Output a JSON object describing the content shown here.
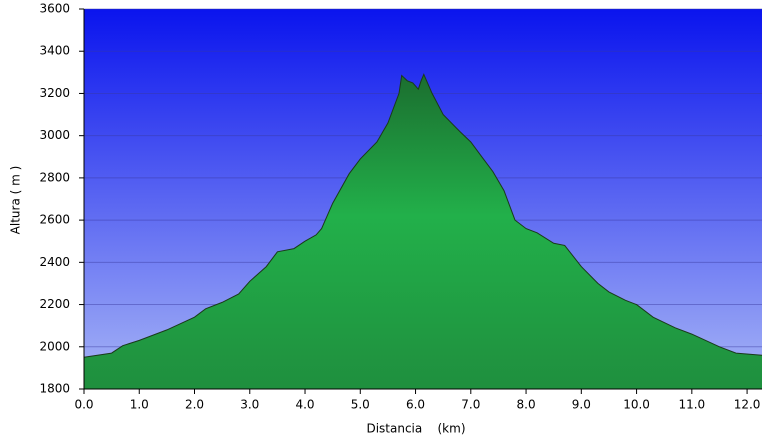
{
  "chart_data": {
    "type": "area",
    "x_label": "Distancia    (km)",
    "y_label": "Altura ( m )",
    "x": [
      0,
      0.5,
      0.7,
      1.0,
      1.5,
      2.0,
      2.2,
      2.5,
      2.8,
      3.0,
      3.3,
      3.5,
      3.8,
      4.0,
      4.2,
      4.3,
      4.5,
      4.8,
      5.0,
      5.3,
      5.5,
      5.7,
      5.75,
      5.85,
      5.95,
      6.05,
      6.1,
      6.15,
      6.3,
      6.5,
      6.8,
      7.0,
      7.2,
      7.4,
      7.6,
      7.8,
      8.0,
      8.2,
      8.5,
      8.7,
      9.0,
      9.3,
      9.5,
      9.8,
      10.0,
      10.3,
      10.7,
      11.0,
      11.5,
      11.8,
      12.27
    ],
    "values": [
      1950,
      1970,
      2005,
      2030,
      2080,
      2140,
      2180,
      2210,
      2250,
      2310,
      2380,
      2450,
      2465,
      2500,
      2530,
      2560,
      2680,
      2820,
      2890,
      2970,
      3060,
      3200,
      3285,
      3260,
      3250,
      3220,
      3260,
      3290,
      3200,
      3100,
      3020,
      2970,
      2900,
      2830,
      2740,
      2600,
      2560,
      2540,
      2490,
      2480,
      2380,
      2300,
      2260,
      2220,
      2200,
      2140,
      2090,
      2060,
      2000,
      1970,
      1960
    ],
    "color": "#22b04a",
    "xlim": [
      0,
      12.27
    ],
    "xticks": [
      {
        "value": 0,
        "label": "0.0"
      },
      {
        "value": 1,
        "label": "1.0"
      },
      {
        "value": 2,
        "label": "2.0"
      },
      {
        "value": 3,
        "label": "3.0"
      },
      {
        "value": 4,
        "label": "4.0"
      },
      {
        "value": 5,
        "label": "5.0"
      },
      {
        "value": 6,
        "label": "6.0"
      },
      {
        "value": 7,
        "label": "7.0"
      },
      {
        "value": 8,
        "label": "8.0"
      },
      {
        "value": 9,
        "label": "9.0"
      },
      {
        "value": 10,
        "label": "10.0"
      },
      {
        "value": 11,
        "label": "11.0"
      },
      {
        "value": 12,
        "label": "12.0"
      }
    ],
    "ylim": [
      1800,
      3600
    ],
    "yticks": [
      1800,
      2000,
      2200,
      2400,
      2600,
      2800,
      3000,
      3200,
      3400,
      3600
    ],
    "grid": true
  }
}
